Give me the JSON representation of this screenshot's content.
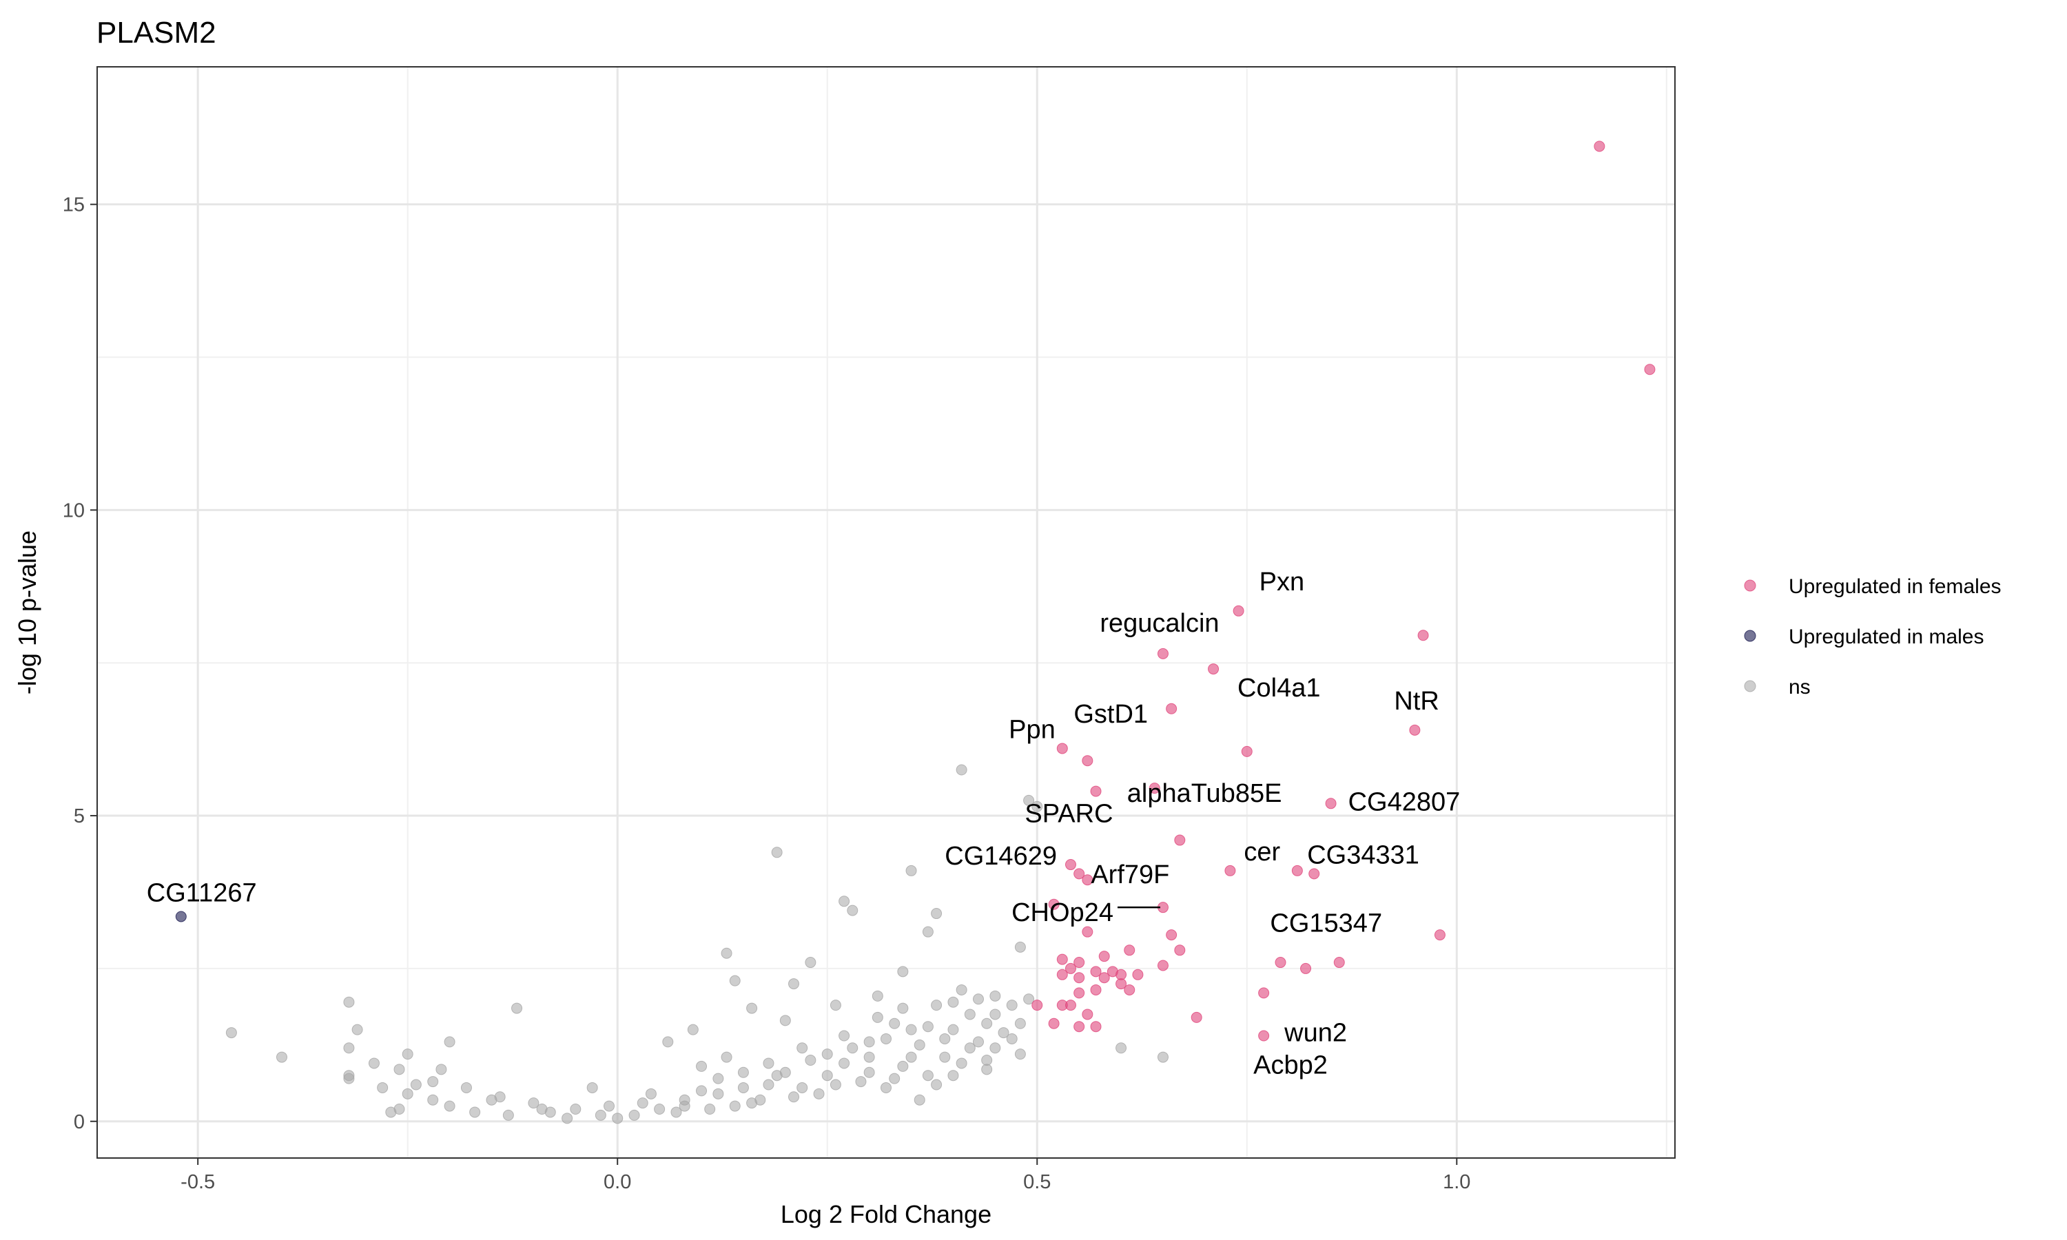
{
  "chart_data": {
    "type": "scatter",
    "title": "PLASM2",
    "xlabel": "Log 2 Fold Change",
    "ylabel": "-log 10 p-value",
    "xlim": [
      -0.62,
      1.26
    ],
    "ylim": [
      -0.6,
      17.25
    ],
    "x_ticks": [
      -0.5,
      0.0,
      0.5,
      1.0
    ],
    "x_tick_labels": [
      "-0.5",
      "0.0",
      "0.5",
      "1.0"
    ],
    "y_ticks": [
      0,
      5,
      10,
      15
    ],
    "y_tick_labels": [
      "0",
      "5",
      "10",
      "15"
    ],
    "grid": true,
    "legend_position": "right",
    "colors": {
      "Upregulated in females": "#e0457b",
      "Upregulated in males": "#1a1a50",
      "ns": "#a6a6a6"
    },
    "series": [
      {
        "name": "Upregulated in females",
        "points": [
          [
            1.17,
            15.95
          ],
          [
            1.23,
            12.3
          ],
          [
            0.74,
            8.35
          ],
          [
            0.96,
            7.95
          ],
          [
            0.65,
            7.65
          ],
          [
            0.71,
            7.4
          ],
          [
            0.66,
            6.75
          ],
          [
            0.95,
            6.4
          ],
          [
            0.53,
            6.1
          ],
          [
            0.75,
            6.05
          ],
          [
            0.56,
            5.9
          ],
          [
            0.57,
            5.4
          ],
          [
            0.64,
            5.45
          ],
          [
            0.85,
            5.2
          ],
          [
            0.67,
            4.6
          ],
          [
            0.54,
            4.2
          ],
          [
            0.55,
            4.05
          ],
          [
            0.56,
            3.95
          ],
          [
            0.73,
            4.1
          ],
          [
            0.81,
            4.1
          ],
          [
            0.83,
            4.05
          ],
          [
            0.52,
            3.55
          ],
          [
            0.65,
            3.5
          ],
          [
            0.56,
            3.1
          ],
          [
            0.66,
            3.05
          ],
          [
            0.98,
            3.05
          ],
          [
            0.67,
            2.8
          ],
          [
            0.61,
            2.8
          ],
          [
            0.53,
            2.65
          ],
          [
            0.55,
            2.6
          ],
          [
            0.58,
            2.7
          ],
          [
            0.79,
            2.6
          ],
          [
            0.82,
            2.5
          ],
          [
            0.86,
            2.6
          ],
          [
            0.54,
            2.5
          ],
          [
            0.57,
            2.45
          ],
          [
            0.59,
            2.45
          ],
          [
            0.62,
            2.4
          ],
          [
            0.65,
            2.55
          ],
          [
            0.53,
            2.4
          ],
          [
            0.55,
            2.35
          ],
          [
            0.58,
            2.35
          ],
          [
            0.6,
            2.4
          ],
          [
            0.6,
            2.25
          ],
          [
            0.61,
            2.15
          ],
          [
            0.57,
            2.15
          ],
          [
            0.55,
            2.1
          ],
          [
            0.77,
            2.1
          ],
          [
            0.5,
            1.9
          ],
          [
            0.53,
            1.9
          ],
          [
            0.54,
            1.9
          ],
          [
            0.56,
            1.75
          ],
          [
            0.69,
            1.7
          ],
          [
            0.52,
            1.6
          ],
          [
            0.55,
            1.55
          ],
          [
            0.57,
            1.55
          ],
          [
            0.77,
            1.4
          ]
        ]
      },
      {
        "name": "Upregulated in males",
        "points": [
          [
            -0.52,
            3.35
          ]
        ]
      },
      {
        "name": "ns",
        "points": [
          [
            0.41,
            5.75
          ],
          [
            0.49,
            5.25
          ],
          [
            0.5,
            5.15
          ],
          [
            0.19,
            4.4
          ],
          [
            0.35,
            4.1
          ],
          [
            0.27,
            3.6
          ],
          [
            0.28,
            3.45
          ],
          [
            0.38,
            3.4
          ],
          [
            0.37,
            3.1
          ],
          [
            0.48,
            2.85
          ],
          [
            0.13,
            2.75
          ],
          [
            0.23,
            2.6
          ],
          [
            0.34,
            2.45
          ],
          [
            0.14,
            2.3
          ],
          [
            0.21,
            2.25
          ],
          [
            0.4,
            1.95
          ],
          [
            0.45,
            2.05
          ],
          [
            0.47,
            1.9
          ],
          [
            0.42,
            1.75
          ],
          [
            0.44,
            1.6
          ],
          [
            0.31,
            1.7
          ],
          [
            0.37,
            1.55
          ],
          [
            0.6,
            1.2
          ],
          [
            0.65,
            1.05
          ],
          [
            -0.32,
            1.95
          ],
          [
            -0.31,
            1.5
          ],
          [
            -0.32,
            1.2
          ],
          [
            -0.46,
            1.45
          ],
          [
            -0.4,
            1.05
          ],
          [
            -0.32,
            0.75
          ],
          [
            -0.32,
            0.7
          ],
          [
            -0.12,
            1.85
          ],
          [
            -0.2,
            1.3
          ],
          [
            -0.25,
            1.1
          ],
          [
            -0.26,
            0.85
          ],
          [
            -0.28,
            0.55
          ],
          [
            -0.25,
            0.45
          ],
          [
            -0.22,
            0.65
          ],
          [
            -0.18,
            0.55
          ],
          [
            -0.26,
            0.2
          ],
          [
            -0.27,
            0.15
          ],
          [
            -0.15,
            0.35
          ],
          [
            -0.1,
            0.3
          ],
          [
            -0.05,
            0.2
          ],
          [
            -0.03,
            0.55
          ],
          [
            0.02,
            0.1
          ],
          [
            0.05,
            0.2
          ],
          [
            0.08,
            0.35
          ],
          [
            0.1,
            0.5
          ],
          [
            0.12,
            0.7
          ],
          [
            0.15,
            0.8
          ],
          [
            0.18,
            0.95
          ],
          [
            0.2,
            0.8
          ],
          [
            0.22,
            1.2
          ],
          [
            0.25,
            1.1
          ],
          [
            0.27,
            1.4
          ],
          [
            0.3,
            1.3
          ],
          [
            0.33,
            1.6
          ],
          [
            0.35,
            1.5
          ],
          [
            0.38,
            1.9
          ],
          [
            0.4,
            1.5
          ],
          [
            0.43,
            1.3
          ],
          [
            0.45,
            1.2
          ],
          [
            0.46,
            1.45
          ],
          [
            0.48,
            1.6
          ],
          [
            0.29,
            0.65
          ],
          [
            0.32,
            0.55
          ],
          [
            0.36,
            0.35
          ],
          [
            0.37,
            0.75
          ],
          [
            0.24,
            0.45
          ],
          [
            0.17,
            0.35
          ],
          [
            0.11,
            0.2
          ],
          [
            0.06,
            1.3
          ],
          [
            0.09,
            1.5
          ],
          [
            0.13,
            1.05
          ],
          [
            0.16,
            1.85
          ],
          [
            0.2,
            1.65
          ],
          [
            0.26,
            1.9
          ],
          [
            0.31,
            2.05
          ],
          [
            0.34,
            1.85
          ],
          [
            0.41,
            2.15
          ],
          [
            0.43,
            2.0
          ],
          [
            0.44,
            0.85
          ],
          [
            0.48,
            1.1
          ],
          [
            -0.08,
            0.15
          ],
          [
            -0.13,
            0.1
          ],
          [
            -0.2,
            0.25
          ],
          [
            -0.17,
            0.15
          ],
          [
            -0.06,
            0.05
          ],
          [
            0.0,
            0.05
          ],
          [
            0.07,
            0.15
          ],
          [
            0.14,
            0.25
          ],
          [
            0.21,
            0.4
          ],
          [
            0.26,
            0.6
          ],
          [
            0.3,
            0.8
          ],
          [
            0.34,
            0.9
          ],
          [
            0.39,
            1.05
          ],
          [
            0.42,
            1.2
          ],
          [
            0.47,
            1.35
          ],
          [
            0.23,
            1.0
          ],
          [
            0.28,
            1.2
          ],
          [
            0.32,
            1.35
          ],
          [
            0.18,
            0.6
          ],
          [
            0.1,
            0.9
          ],
          [
            0.03,
            0.3
          ],
          [
            -0.01,
            0.25
          ],
          [
            0.04,
            0.45
          ],
          [
            0.15,
            0.55
          ],
          [
            0.25,
            0.75
          ],
          [
            0.35,
            1.05
          ],
          [
            0.39,
            1.35
          ],
          [
            0.45,
            1.75
          ],
          [
            0.49,
            2.0
          ],
          [
            0.41,
            0.95
          ],
          [
            0.36,
            1.25
          ],
          [
            0.3,
            1.05
          ],
          [
            0.27,
            0.95
          ],
          [
            0.19,
            0.75
          ],
          [
            0.12,
            0.45
          ],
          [
            0.08,
            0.25
          ],
          [
            -0.02,
            0.1
          ],
          [
            -0.09,
            0.2
          ],
          [
            -0.14,
            0.4
          ],
          [
            -0.22,
            0.35
          ],
          [
            -0.24,
            0.6
          ],
          [
            -0.21,
            0.85
          ],
          [
            -0.29,
            0.95
          ],
          [
            0.16,
            0.3
          ],
          [
            0.22,
            0.55
          ],
          [
            0.33,
            0.7
          ],
          [
            0.38,
            0.6
          ],
          [
            0.44,
            1.0
          ],
          [
            0.4,
            0.75
          ]
        ]
      }
    ],
    "labels": [
      {
        "text": "Pxn",
        "x": 0.74,
        "y": 8.35
      },
      {
        "text": "regucalcin",
        "x": 0.65,
        "y": 7.65
      },
      {
        "text": "Col4a1",
        "x": 0.71,
        "y": 7.4
      },
      {
        "text": "Ppn",
        "x": 0.53,
        "y": 6.1
      },
      {
        "text": "GstD1",
        "x": 0.56,
        "y": 5.9
      },
      {
        "text": "NtR",
        "x": 0.95,
        "y": 6.4
      },
      {
        "text": "alphaTub85E",
        "x": 0.64,
        "y": 5.45
      },
      {
        "text": "CG42807",
        "x": 0.85,
        "y": 5.2
      },
      {
        "text": "SPARC",
        "x": 0.57,
        "y": 5.4
      },
      {
        "text": "cer",
        "x": 0.73,
        "y": 4.1
      },
      {
        "text": "CG34331",
        "x": 0.83,
        "y": 4.05
      },
      {
        "text": "CG14629",
        "x": 0.54,
        "y": 4.2
      },
      {
        "text": "Arf79F",
        "x": 0.56,
        "y": 3.95
      },
      {
        "text": "CG15347",
        "x": 0.73,
        "y": 3.55
      },
      {
        "text": "CHOp24",
        "x": 0.65,
        "y": 3.5
      },
      {
        "text": "CG11267",
        "x": -0.52,
        "y": 3.35
      },
      {
        "text": "wun2",
        "x": 0.77,
        "y": 2.1
      },
      {
        "text": "Acbp2",
        "x": 0.77,
        "y": 1.4
      }
    ]
  }
}
